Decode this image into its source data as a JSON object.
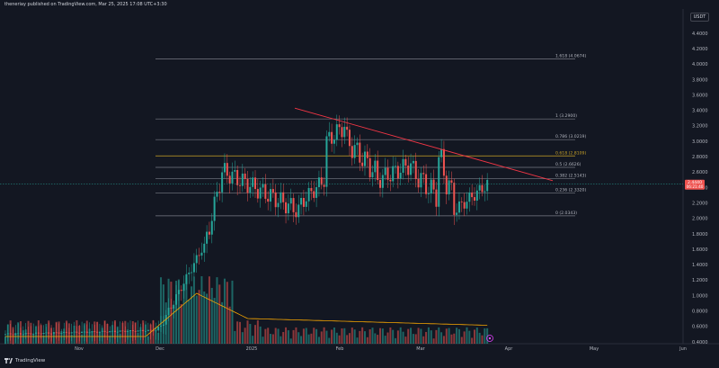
{
  "header": {
    "publisher_line": "theneriay published on TradingView.com, Mar 25, 2025 17:08 UTC+3:30"
  },
  "legend": {
    "symbol": "RIPPLE / TETHER · 1D · COINEX",
    "ohlc": "O2.4456 H2.4800 L2.4074 C2.4440 −0.0024 (−0.11%)",
    "vol_label": "Vol · XRP (20)",
    "vol_value": "5.25M",
    "vol_ma": "8.8M"
  },
  "currency_button": "USDT",
  "price_axis": {
    "ticks": [
      "4.4000",
      "4.2000",
      "4.0000",
      "3.8000",
      "3.6000",
      "3.4000",
      "3.2000",
      "3.0000",
      "2.8000",
      "2.6000",
      "2.4000",
      "2.2000",
      "2.0000",
      "1.8000",
      "1.6000",
      "1.4000",
      "1.2000",
      "1.0000",
      "0.8000",
      "0.6000",
      "0.4000"
    ],
    "last_price": "2.4440",
    "countdown": "06:21:40"
  },
  "time_axis": {
    "labels": [
      "Nov",
      "Dec",
      "2025",
      "Feb",
      "Mar",
      "Apr",
      "May",
      "Jun"
    ]
  },
  "fib_levels": [
    {
      "label": "1.618 (4.0674)",
      "price": 4.0674
    },
    {
      "label": "1 (3.2900)",
      "price": 3.29
    },
    {
      "label": "0.786 (3.0219)",
      "price": 3.0219
    },
    {
      "label": "0.618 (2.8109)",
      "price": 2.8109
    },
    {
      "label": "0.5 (2.6626)",
      "price": 2.6626
    },
    {
      "label": "0.382 (2.5143)",
      "price": 2.5143
    },
    {
      "label": "0.236 (2.3320)",
      "price": 2.332
    },
    {
      "label": "0 (2.0343)",
      "price": 2.0343
    }
  ],
  "colors": {
    "up": "#26a69a",
    "down": "#ef5350",
    "trendline": "#f23645",
    "fib_golden": "#c9a227",
    "volume_ma": "#f7a600"
  },
  "footer": {
    "brand": "TradingView",
    "logo_icon": "tradingview-logo-icon"
  }
}
